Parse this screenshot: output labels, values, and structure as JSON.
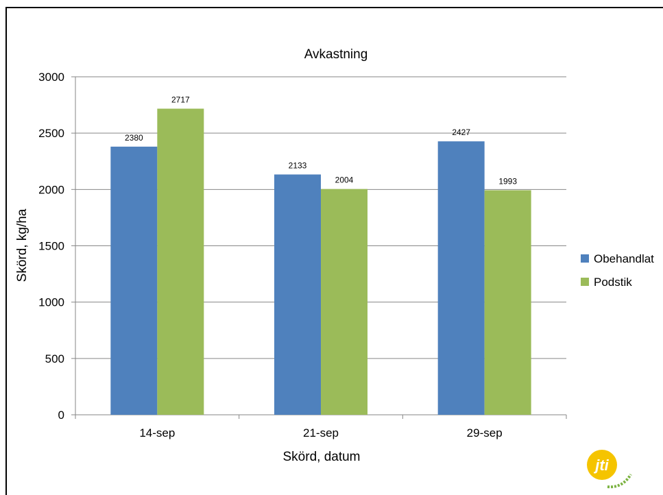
{
  "chart_data": {
    "type": "bar",
    "title": "Avkastning",
    "xlabel": "Skörd, datum",
    "ylabel": "Skörd, kg/ha",
    "categories": [
      "14-sep",
      "21-sep",
      "29-sep"
    ],
    "series": [
      {
        "name": "Obehandlat",
        "color": "#4F81BD",
        "values": [
          2380,
          2133,
          2427
        ]
      },
      {
        "name": "Podstik",
        "color": "#9BBB59",
        "values": [
          2717,
          2004,
          1993
        ]
      }
    ],
    "ylim": [
      0,
      3000
    ],
    "yticks": [
      0,
      500,
      1000,
      1500,
      2000,
      2500,
      3000
    ],
    "grid": true,
    "legend": "right"
  },
  "logo": {
    "text": "jti",
    "icon": "jti-logo-icon"
  }
}
